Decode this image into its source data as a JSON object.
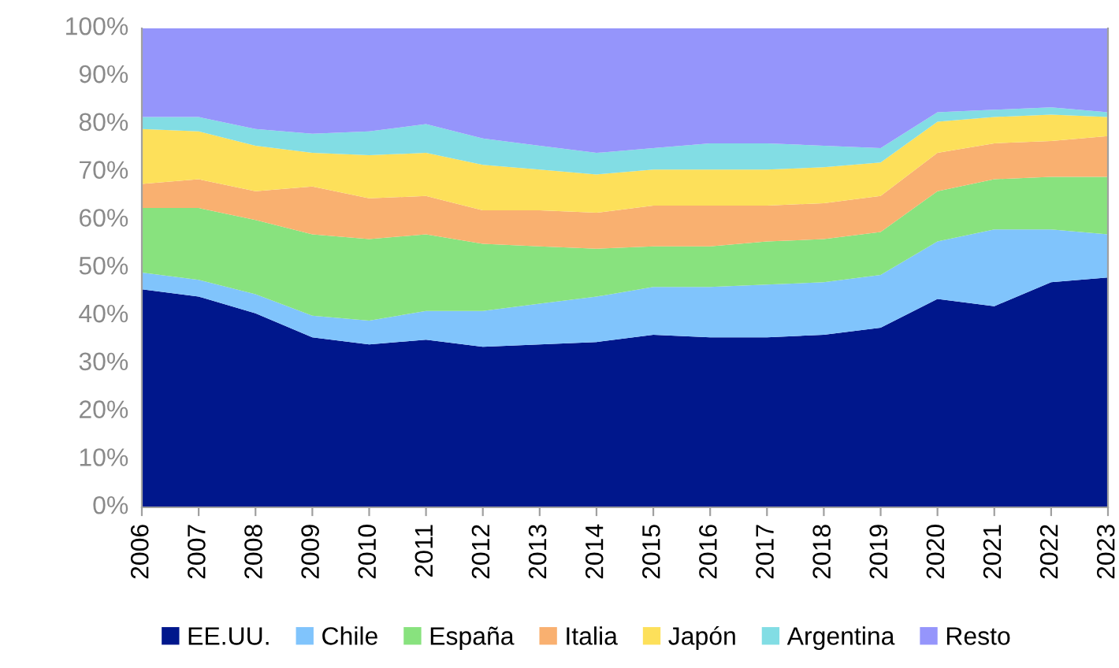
{
  "chart_data": {
    "type": "area",
    "stacked": true,
    "categories": [
      "2006",
      "2007",
      "2008",
      "2009",
      "2010",
      "2011",
      "2012",
      "2013",
      "2014",
      "2015",
      "2016",
      "2017",
      "2018",
      "2019",
      "2020",
      "2021",
      "2022",
      "2023"
    ],
    "ylim": [
      0,
      100
    ],
    "yticks": [
      {
        "value": 0,
        "label": "0%"
      },
      {
        "value": 10,
        "label": "10%"
      },
      {
        "value": 20,
        "label": "20%"
      },
      {
        "value": 30,
        "label": "30%"
      },
      {
        "value": 40,
        "label": "40%"
      },
      {
        "value": 50,
        "label": "50%"
      },
      {
        "value": 60,
        "label": "60%"
      },
      {
        "value": 70,
        "label": "70%"
      },
      {
        "value": 80,
        "label": "80%"
      },
      {
        "value": 90,
        "label": "90%"
      },
      {
        "value": 100,
        "label": "100%"
      }
    ],
    "grid": false,
    "legend": "bottom",
    "series": [
      {
        "name": "EE.UU.",
        "color": "#00178c",
        "values": [
          45.5,
          44,
          40.5,
          35.5,
          34,
          35,
          33.5,
          34,
          34.5,
          36,
          35.5,
          35.5,
          36,
          37.5,
          43.5,
          42,
          47,
          48
        ]
      },
      {
        "name": "Chile",
        "color": "#80c4fc",
        "values": [
          3.5,
          3.5,
          4,
          4.5,
          5,
          6,
          7.5,
          8.5,
          9.5,
          10,
          10.5,
          11,
          11,
          11,
          12,
          16,
          11,
          9
        ]
      },
      {
        "name": "España",
        "color": "#88e27e",
        "values": [
          13.5,
          15,
          15.5,
          17,
          17,
          16,
          14,
          12,
          10,
          8.5,
          8.5,
          9,
          9,
          9,
          10.5,
          10.5,
          11,
          12
        ]
      },
      {
        "name": "Italia",
        "color": "#f9b070",
        "values": [
          5,
          6,
          6,
          10,
          8.5,
          8,
          7,
          7.5,
          7.5,
          8.5,
          8.5,
          7.5,
          7.5,
          7.5,
          8,
          7.5,
          7.5,
          8.5
        ]
      },
      {
        "name": "Japón",
        "color": "#fde05a",
        "values": [
          11.5,
          10,
          9.5,
          7,
          9,
          9,
          9.5,
          8.5,
          8,
          7.5,
          7.5,
          7.5,
          7.5,
          7,
          6.5,
          5.5,
          5.5,
          4
        ]
      },
      {
        "name": "Argentina",
        "color": "#82dde4",
        "values": [
          2.5,
          3,
          3.5,
          4,
          5,
          6,
          5.5,
          5,
          4.5,
          4.5,
          5.5,
          5.5,
          4.5,
          3,
          2,
          1.5,
          1.5,
          1
        ]
      },
      {
        "name": "Resto",
        "color": "#9595fb",
        "values": [
          18.5,
          18.5,
          21,
          22,
          21.5,
          20,
          23,
          24.5,
          26,
          25,
          24,
          24,
          24.5,
          25,
          17.5,
          17,
          16.5,
          17.5
        ]
      }
    ]
  }
}
